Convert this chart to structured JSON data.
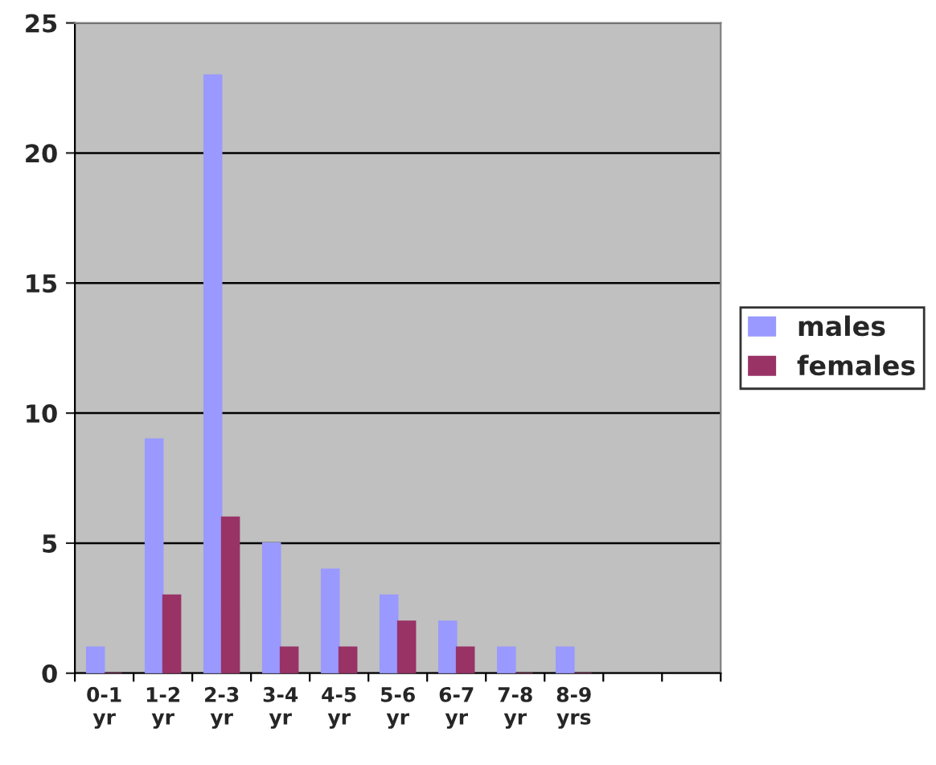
{
  "chart_data": {
    "type": "bar",
    "categories": [
      "0-1 yr",
      "1-2 yr",
      "2-3 yr",
      "3-4 yr",
      "4-5 yr",
      "5-6 yr",
      "6-7 yr",
      "7-8 yr",
      "8-9 yrs",
      null,
      null
    ],
    "series": [
      {
        "name": "males",
        "color": "#9999ff",
        "values": [
          1,
          9,
          23,
          5,
          4,
          3,
          2,
          1,
          1,
          null,
          null
        ]
      },
      {
        "name": "females",
        "color": "#993366",
        "values": [
          0,
          3,
          6,
          1,
          1,
          2,
          1,
          0,
          0,
          null,
          null
        ]
      }
    ],
    "ylim": [
      0,
      25
    ],
    "yticks": [
      0,
      5,
      10,
      15,
      20,
      25
    ],
    "grid": "y",
    "legend": "right"
  }
}
